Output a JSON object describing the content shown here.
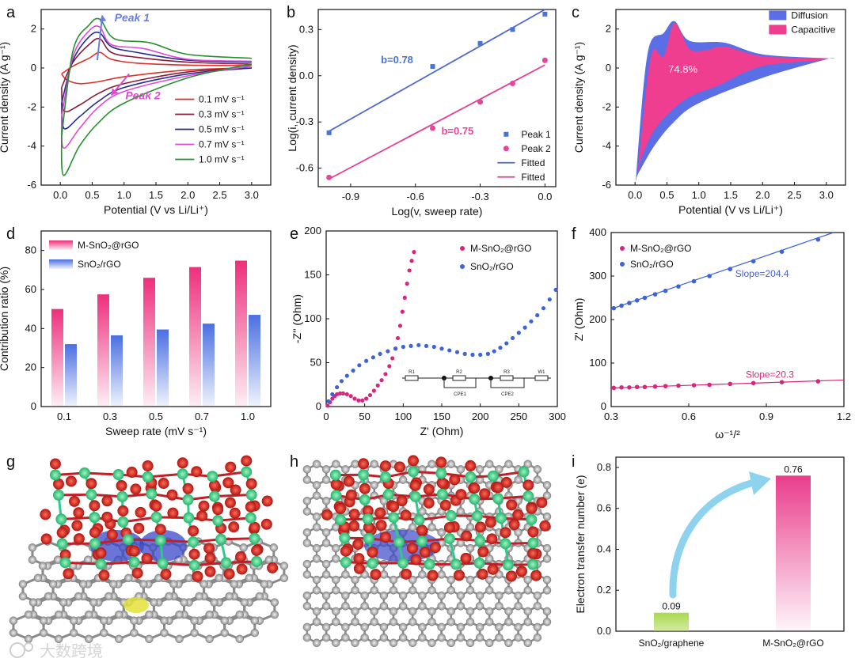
{
  "panel_labels": [
    "a",
    "b",
    "c",
    "d",
    "e",
    "f",
    "g",
    "h",
    "i"
  ],
  "watermark": "大数跨境",
  "chart_data": [
    {
      "id": "a",
      "type": "line",
      "xlabel": "Potential (V vs Li/Li⁺)",
      "ylabel": "Current density (A g⁻¹)",
      "xlim": [
        -0.3,
        3.3
      ],
      "ylim": [
        -6,
        3
      ],
      "xticks": [
        0,
        0.5,
        1,
        1.5,
        2,
        2.5,
        3
      ],
      "xticklabels": [
        "0.0",
        "0.5",
        "1.0",
        "1.5",
        "2.0",
        "2.5",
        "3.0"
      ],
      "yticks": [
        -6,
        -4,
        -2,
        0,
        2
      ],
      "annotations": [
        "Peak 1",
        "Peak 2"
      ],
      "series": [
        {
          "name": "0.1 mV s⁻¹",
          "color": "#d9322b",
          "upper": [
            [
              0.02,
              -0.3
            ],
            [
              0.2,
              0.1
            ],
            [
              0.45,
              0.5
            ],
            [
              0.62,
              0.8
            ],
            [
              0.8,
              0.45
            ],
            [
              1.2,
              0.25
            ],
            [
              2,
              0.15
            ],
            [
              3,
              0.12
            ]
          ],
          "lower": [
            [
              0.02,
              -0.3
            ],
            [
              0.1,
              -0.6
            ],
            [
              0.3,
              -0.8
            ],
            [
              0.6,
              -0.7
            ],
            [
              1,
              -0.45
            ],
            [
              2,
              -0.1
            ],
            [
              3,
              0
            ]
          ]
        },
        {
          "name": "0.3 mV s⁻¹",
          "color": "#8b1a3a",
          "upper": [
            [
              0.02,
              -1
            ],
            [
              0.2,
              0.3
            ],
            [
              0.45,
              1.2
            ],
            [
              0.62,
              1.5
            ],
            [
              0.8,
              0.8
            ],
            [
              1.2,
              0.55
            ],
            [
              2,
              0.3
            ],
            [
              3,
              0.2
            ]
          ],
          "lower": [
            [
              0.02,
              -1
            ],
            [
              0.06,
              -2.2
            ],
            [
              0.3,
              -1.9
            ],
            [
              0.6,
              -1.3
            ],
            [
              1,
              -0.8
            ],
            [
              2,
              -0.2
            ],
            [
              3,
              0
            ]
          ]
        },
        {
          "name": "0.5 mV s⁻¹",
          "color": "#232f8e",
          "upper": [
            [
              0.02,
              -1.8
            ],
            [
              0.2,
              0.4
            ],
            [
              0.45,
              1.6
            ],
            [
              0.62,
              1.8
            ],
            [
              0.8,
              1.1
            ],
            [
              1.2,
              0.8
            ],
            [
              2,
              0.4
            ],
            [
              3,
              0.3
            ]
          ],
          "lower": [
            [
              0.02,
              -1.8
            ],
            [
              0.06,
              -3.1
            ],
            [
              0.3,
              -2.5
            ],
            [
              0.6,
              -1.7
            ],
            [
              1,
              -1
            ],
            [
              2,
              -0.3
            ],
            [
              3,
              0
            ]
          ]
        },
        {
          "name": "0.7 mV s⁻¹",
          "color": "#e04ad3",
          "upper": [
            [
              0.02,
              -2.5
            ],
            [
              0.2,
              0.6
            ],
            [
              0.45,
              1.9
            ],
            [
              0.62,
              2.1
            ],
            [
              0.8,
              1.2
            ],
            [
              1.3,
              1
            ],
            [
              2,
              0.45
            ],
            [
              3,
              0.35
            ]
          ],
          "lower": [
            [
              0.02,
              -2.5
            ],
            [
              0.05,
              -4.1
            ],
            [
              0.3,
              -3.1
            ],
            [
              0.6,
              -2
            ],
            [
              1,
              -1.2
            ],
            [
              2,
              -0.4
            ],
            [
              3,
              0.1
            ]
          ]
        },
        {
          "name": "1.0 mV s⁻¹",
          "color": "#27902e",
          "upper": [
            [
              0.02,
              -3.5
            ],
            [
              0.2,
              0.9
            ],
            [
              0.45,
              2.2
            ],
            [
              0.62,
              2.5
            ],
            [
              0.85,
              1.5
            ],
            [
              1.4,
              1.3
            ],
            [
              2,
              0.7
            ],
            [
              3,
              0.5
            ]
          ],
          "lower": [
            [
              0.02,
              -3.5
            ],
            [
              0.05,
              -5.5
            ],
            [
              0.3,
              -4
            ],
            [
              0.6,
              -2.8
            ],
            [
              1,
              -1.8
            ],
            [
              2,
              -0.5
            ],
            [
              3,
              0.2
            ]
          ]
        }
      ]
    },
    {
      "id": "b",
      "type": "scatter",
      "xlabel": "Log(v, sweep rate)",
      "ylabel": "Log(i, current density)",
      "xlim": [
        -1.05,
        0.05
      ],
      "ylim": [
        -0.72,
        0.43
      ],
      "xticks": [
        -0.9,
        -0.6,
        -0.3,
        0
      ],
      "xticklabels": [
        "-0.9",
        "-0.6",
        "-0.3",
        "0.0"
      ],
      "yticks": [
        -0.6,
        -0.3,
        0,
        0.3
      ],
      "yticklabels": [
        "-0.6",
        "-0.3",
        "0.0",
        "0.3"
      ],
      "annotations": [
        "b=0.78",
        "b=0.75"
      ],
      "legend": [
        "Peak 1",
        "Peak 2",
        "Fitted",
        "Fitted"
      ],
      "series": [
        {
          "name": "Peak 1",
          "color": "#4a73d6",
          "x": [
            -1,
            -0.52,
            -0.3,
            -0.15,
            0
          ],
          "y": [
            -0.37,
            0.06,
            0.21,
            0.3,
            0.4
          ],
          "fit": [
            [
              -1,
              -0.36
            ],
            [
              0,
              0.43
            ]
          ]
        },
        {
          "name": "Peak 2",
          "color": "#e8459a",
          "x": [
            -1,
            -0.52,
            -0.3,
            -0.15,
            0
          ],
          "y": [
            -0.66,
            -0.34,
            -0.17,
            -0.05,
            0.1
          ],
          "fit": [
            [
              -1,
              -0.67
            ],
            [
              0,
              0.07
            ]
          ]
        }
      ]
    },
    {
      "id": "c",
      "type": "area",
      "xlabel": "Potential (V vs Li/Li⁺)",
      "ylabel": "Current density (A g⁻¹)",
      "xlim": [
        -0.3,
        3.3
      ],
      "ylim": [
        -6,
        3
      ],
      "xticks": [
        0,
        0.5,
        1,
        1.5,
        2,
        2.5,
        3
      ],
      "xticklabels": [
        "0.0",
        "0.5",
        "1.0",
        "1.5",
        "2.0",
        "2.5",
        "3.0"
      ],
      "yticks": [
        -6,
        -4,
        -2,
        0,
        2
      ],
      "legend": [
        "Diffusion",
        "Capacitive"
      ],
      "annotation": "74.8%",
      "outer": [
        [
          0.02,
          -5.4
        ],
        [
          0.2,
          0.8
        ],
        [
          0.45,
          1.8
        ],
        [
          0.62,
          2.4
        ],
        [
          0.85,
          1.4
        ],
        [
          1.4,
          1.3
        ],
        [
          2,
          0.7
        ],
        [
          3,
          0.5
        ],
        [
          3,
          0.45
        ],
        [
          2,
          -0.5
        ],
        [
          1,
          -1.8
        ],
        [
          0.6,
          -2.8
        ],
        [
          0.3,
          -4
        ],
        [
          0.05,
          -5.4
        ]
      ],
      "inner": [
        [
          0.05,
          -5.2
        ],
        [
          0.25,
          0.6
        ],
        [
          0.45,
          0.6
        ],
        [
          0.62,
          2.3
        ],
        [
          0.85,
          1
        ],
        [
          1.1,
          0.9
        ],
        [
          1.4,
          1.1
        ],
        [
          2,
          0.6
        ],
        [
          3,
          0.45
        ],
        [
          2,
          0.1
        ],
        [
          1.3,
          -0.9
        ],
        [
          0.9,
          -1.4
        ],
        [
          0.6,
          -2.1
        ],
        [
          0.3,
          -3.2
        ],
        [
          0.1,
          -4.6
        ]
      ]
    },
    {
      "id": "d",
      "type": "bar",
      "xlabel": "Sweep rate (mV s⁻¹)",
      "ylabel": "Contribution ratio (%)",
      "categories": [
        "0.1",
        "0.3",
        "0.5",
        "0.7",
        "1.0"
      ],
      "ylim": [
        0,
        90
      ],
      "yticks": [
        0,
        20,
        40,
        60,
        80
      ],
      "series": [
        {
          "name": "M-SnO₂@rGO",
          "color": "#e83a7a",
          "values": [
            50,
            57.5,
            66,
            71.5,
            74.8
          ]
        },
        {
          "name": "SnO₂/rGO",
          "color": "#4a6fe0",
          "values": [
            32,
            36.5,
            39.5,
            42.5,
            47
          ]
        }
      ]
    },
    {
      "id": "e",
      "type": "scatter",
      "xlabel": "Z' (Ohm)",
      "ylabel": "-Z'' (Ohm)",
      "xlim": [
        0,
        300
      ],
      "ylim": [
        0,
        200
      ],
      "xticks": [
        0,
        50,
        100,
        150,
        200,
        250,
        300
      ],
      "yticks": [
        0,
        50,
        100,
        150,
        200
      ],
      "circuit_labels": [
        "R1",
        "R2",
        "CPE1",
        "R3",
        "CPE2",
        "W1"
      ],
      "series": [
        {
          "name": "M-SnO₂@rGO",
          "color": "#d6277f",
          "x": [
            2,
            5,
            8,
            11,
            14,
            18,
            22,
            27,
            32,
            37,
            42,
            47,
            52,
            57,
            62,
            67,
            72,
            77,
            82,
            86,
            90,
            93,
            96,
            99,
            102,
            105,
            108,
            111,
            114
          ],
          "y": [
            1,
            5,
            9,
            12,
            14,
            15,
            15,
            14,
            12,
            9,
            7,
            7,
            9,
            13,
            18,
            24,
            30,
            37,
            46,
            55,
            66,
            78,
            92,
            108,
            124,
            140,
            155,
            166,
            176
          ]
        },
        {
          "name": "SnO₂/rGO",
          "color": "#3e63d6",
          "x": [
            3,
            8,
            14,
            20,
            27,
            35,
            43,
            52,
            61,
            70,
            80,
            90,
            100,
            110,
            120,
            130,
            140,
            150,
            160,
            170,
            180,
            190,
            200,
            210,
            218,
            226,
            234,
            242,
            250,
            258,
            266,
            274,
            282,
            290,
            298
          ],
          "y": [
            6,
            14,
            22,
            29,
            35,
            41,
            47,
            52,
            56,
            60,
            63,
            66,
            68,
            69,
            70,
            69,
            68,
            66,
            64,
            62,
            60,
            59,
            59,
            60,
            63,
            67,
            72,
            78,
            84,
            90,
            97,
            104,
            112,
            122,
            133
          ]
        }
      ]
    },
    {
      "id": "f",
      "type": "scatter",
      "xlabel": "ω⁻¹/²",
      "ylabel": "Z' (Ohm)",
      "xlim": [
        0.3,
        1.2
      ],
      "ylim": [
        0,
        400
      ],
      "xticks": [
        0.3,
        0.6,
        0.9,
        1.2
      ],
      "xticklabels": [
        "0.3",
        "0.6",
        "0.9",
        "1.2"
      ],
      "yticks": [
        0,
        100,
        200,
        300,
        400
      ],
      "annotations": [
        "Slope=204.4",
        "Slope=20.3"
      ],
      "series": [
        {
          "name": "M-SnO₂@rGO",
          "color": "#d6277f",
          "x": [
            0.31,
            0.34,
            0.37,
            0.4,
            0.43,
            0.47,
            0.51,
            0.56,
            0.62,
            0.68,
            0.76,
            0.85,
            0.96,
            1.1
          ],
          "y": [
            43,
            44,
            44,
            45,
            45,
            46,
            47,
            48,
            49,
            50,
            52,
            54,
            56,
            58
          ],
          "slope": 20.3,
          "intercept": 36.7
        },
        {
          "name": "SnO₂/rGO",
          "color": "#3e63d6",
          "x": [
            0.31,
            0.34,
            0.37,
            0.4,
            0.43,
            0.47,
            0.51,
            0.56,
            0.62,
            0.68,
            0.76,
            0.85,
            0.96,
            1.1
          ],
          "y": [
            226,
            232,
            238,
            244,
            250,
            258,
            266,
            276,
            288,
            300,
            316,
            334,
            356,
            384
          ],
          "slope": 204.4,
          "intercept": 163
        }
      ]
    },
    {
      "id": "i",
      "type": "bar",
      "xlabel": "",
      "ylabel": "Electron transfer number (e)",
      "categories": [
        "SnO₂/graphene",
        "M-SnO₂@rGO"
      ],
      "values": [
        0.09,
        0.76
      ],
      "value_labels": [
        "0.09",
        "0.76"
      ],
      "colors": [
        "#a8d84c",
        "#ea3d8c"
      ],
      "ylim": [
        0,
        0.85
      ],
      "yticks": [
        0,
        0.2,
        0.4,
        0.6,
        0.8
      ],
      "yticklabels": [
        "0.0",
        "0.2",
        "0.4",
        "0.6",
        "0.8"
      ]
    }
  ]
}
